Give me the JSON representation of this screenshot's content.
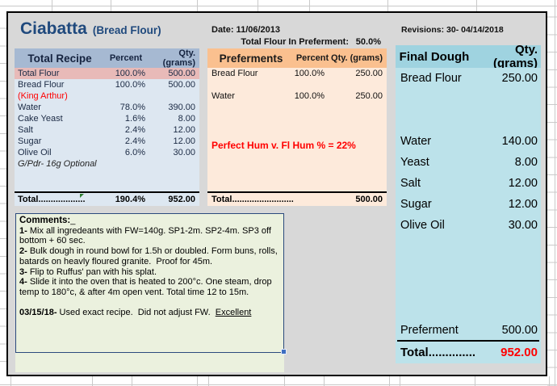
{
  "title": {
    "name": "Ciabatta",
    "subtitle": "(Bread Flour)"
  },
  "meta": {
    "date": "Date: 11/06/2013",
    "preferment_label": "Total Flour In Preferment:",
    "preferment_value": "50.0%",
    "revisions": "Revisions: 30- 04/14/2018"
  },
  "total_recipe": {
    "headers": [
      "Total Recipe",
      "Percent",
      "Qty. (grams)"
    ],
    "rows": [
      {
        "item": "Total Flour",
        "percent": "100.0%",
        "qty": "500.00",
        "highlight": true
      },
      {
        "item": "Bread Flour",
        "percent": "100.0%",
        "qty": "500.00"
      },
      {
        "item": "(King Arthur)",
        "percent": "",
        "qty": "",
        "red": true
      },
      {
        "item": "Water",
        "percent": "78.0%",
        "qty": "390.00"
      },
      {
        "item": "Cake Yeast",
        "percent": "1.6%",
        "qty": "8.00"
      },
      {
        "item": "Salt",
        "percent": "2.4%",
        "qty": "12.00"
      },
      {
        "item": "Sugar",
        "percent": "2.4%",
        "qty": "12.00"
      },
      {
        "item": "Olive Oil",
        "percent": "6.0%",
        "qty": "30.00"
      },
      {
        "item": "G/Pdr- 16g Optional",
        "percent": "",
        "qty": "",
        "italic": true
      }
    ],
    "total": {
      "label": "Total...................",
      "percent": "190.4%",
      "qty": "952.00"
    }
  },
  "preferments": {
    "headers": [
      "Preferments",
      "Percent",
      "Qty. (grams)"
    ],
    "rows": [
      {
        "item": "Bread Flour",
        "percent": "100.0%",
        "qty": "250.00"
      },
      {
        "item": "",
        "percent": "",
        "qty": ""
      },
      {
        "item": "Water",
        "percent": "100.0%",
        "qty": "250.00"
      }
    ],
    "note": "Perfect Hum v. Fl Hum % = 22%",
    "total": {
      "label": "Total.........................",
      "qty": "500.00"
    }
  },
  "final_dough": {
    "headers": [
      "Final Dough",
      "Qty. (grams)"
    ],
    "rows": [
      {
        "item": "Bread Flour",
        "qty": "250.00"
      },
      {
        "item": "",
        "qty": ""
      },
      {
        "item": "",
        "qty": ""
      },
      {
        "item": "Water",
        "qty": "140.00"
      },
      {
        "item": "Yeast",
        "qty": "8.00"
      },
      {
        "item": "Salt",
        "qty": "12.00"
      },
      {
        "item": "Sugar",
        "qty": "12.00"
      },
      {
        "item": "Olive Oil",
        "qty": "30.00"
      },
      {
        "item": "",
        "qty": ""
      },
      {
        "item": "",
        "qty": ""
      },
      {
        "item": "",
        "qty": ""
      },
      {
        "item": "",
        "qty": ""
      },
      {
        "item": "Preferment",
        "qty": "500.00"
      }
    ],
    "total": {
      "label": "Total..............",
      "qty": "952.00"
    }
  },
  "comments": {
    "heading": "Comments:",
    "cursor": "_",
    "lines": [
      {
        "prefix": "1-",
        "text": " Mix all ingredeants with FW=140g. SP1-2m. SP2-4m. SP3 off bottom + 60 sec."
      },
      {
        "prefix": "2-",
        "text": " Bulk dough in round bowl for 1.5h or doubled. Form buns, rolls, batards on heavly floured granite.  Proof for 45m."
      },
      {
        "prefix": "3-",
        "text": " Flip to Ruffus' pan with his splat."
      },
      {
        "prefix": "4-",
        "text": " Slide it into the oven that is heated to 200°c. One steam, drop temp to 180°c, & after 4m open vent. Total time 12 to 15m."
      },
      {
        "prefix": "",
        "text": ""
      },
      {
        "prefix": "03/15/18-",
        "text": " Used exact recipe.  Did not adjust FW.  ",
        "underlined": "Excellent"
      }
    ]
  },
  "colors": {
    "accent_title": "#1F497D",
    "sheet_bg": "#D8D8D8",
    "left_header": "#A6B9D2",
    "left_body": "#DDE7F1",
    "highlight_row": "#E8BAB8",
    "mid_header": "#FAC08F",
    "mid_body": "#FDEADB",
    "right_header": "#9FD3E0",
    "right_body": "#BCE2EA",
    "comments_bg": "#EBF1DE",
    "red": "#FF0000"
  }
}
